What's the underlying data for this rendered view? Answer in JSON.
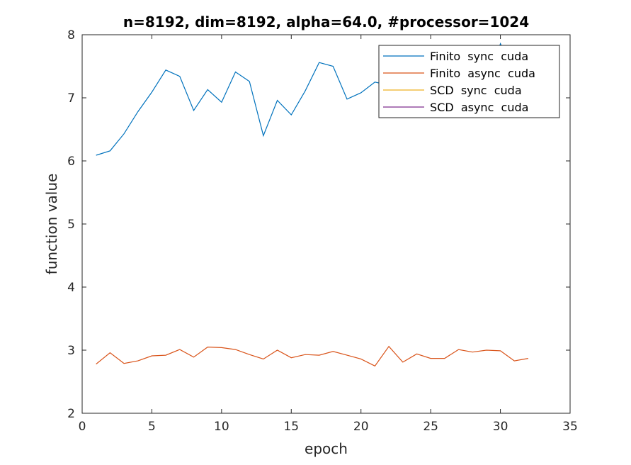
{
  "chart_data": {
    "type": "line",
    "title": "n=8192, dim=8192, alpha=64.0, #processor=1024",
    "xlabel": "epoch",
    "ylabel": "function value",
    "xlim": [
      0,
      35
    ],
    "ylim": [
      2,
      8
    ],
    "xticks": [
      0,
      5,
      10,
      15,
      20,
      25,
      30,
      35
    ],
    "yticks": [
      2,
      3,
      4,
      5,
      6,
      7,
      8
    ],
    "grid": false,
    "legend_position": "top-right",
    "series": [
      {
        "name": "Finito  sync  cuda",
        "color": "#0072BD",
        "x": [
          1,
          2,
          3,
          4,
          5,
          6,
          7,
          8,
          9,
          10,
          11,
          12,
          13,
          14,
          15,
          16,
          17,
          18,
          19,
          20,
          21,
          22,
          23,
          24,
          25,
          26,
          27,
          28,
          29,
          30,
          31,
          32
        ],
        "values": [
          6.09,
          6.16,
          6.43,
          6.78,
          7.09,
          7.44,
          7.34,
          6.8,
          7.13,
          6.93,
          7.41,
          7.26,
          6.4,
          6.96,
          6.73,
          7.11,
          7.56,
          7.5,
          6.98,
          7.08,
          7.25,
          7.2,
          7.1,
          7.0,
          6.95,
          6.85,
          6.7,
          6.9,
          7.1,
          7.86,
          7.4,
          7.3
        ]
      },
      {
        "name": "Finito  async  cuda",
        "color": "#D95319",
        "x": [
          1,
          2,
          3,
          4,
          5,
          6,
          7,
          8,
          9,
          10,
          11,
          12,
          13,
          14,
          15,
          16,
          17,
          18,
          19,
          20,
          21,
          22,
          23,
          24,
          25,
          26,
          27,
          28,
          29,
          30,
          31,
          32
        ],
        "values": [
          2.78,
          2.96,
          2.79,
          2.83,
          2.91,
          2.92,
          3.01,
          2.89,
          3.05,
          3.04,
          3.01,
          2.93,
          2.86,
          3.0,
          2.88,
          2.93,
          2.92,
          2.98,
          2.92,
          2.86,
          2.75,
          3.06,
          2.81,
          2.94,
          2.87,
          2.87,
          3.01,
          2.97,
          3.0,
          2.99,
          2.83,
          2.87
        ]
      },
      {
        "name": "SCD  sync  cuda",
        "color": "#EDB120",
        "x": [],
        "values": []
      },
      {
        "name": "SCD  async  cuda",
        "color": "#7E2F8E",
        "x": [],
        "values": []
      }
    ]
  }
}
